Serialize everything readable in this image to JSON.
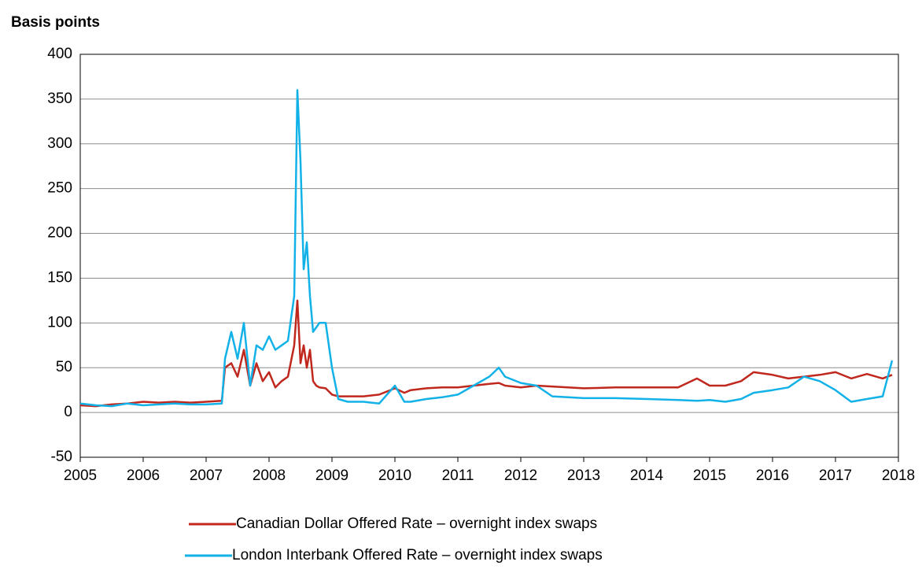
{
  "chart_data": {
    "type": "line",
    "y_label": "Basis points",
    "x": [
      2005.0,
      2005.25,
      2005.5,
      2005.75,
      2006.0,
      2006.25,
      2006.5,
      2006.75,
      2007.0,
      2007.25,
      2007.3,
      2007.4,
      2007.5,
      2007.6,
      2007.7,
      2007.8,
      2007.9,
      2008.0,
      2008.1,
      2008.2,
      2008.3,
      2008.4,
      2008.45,
      2008.5,
      2008.55,
      2008.6,
      2008.65,
      2008.7,
      2008.75,
      2008.8,
      2008.9,
      2009.0,
      2009.1,
      2009.25,
      2009.5,
      2009.75,
      2010.0,
      2010.15,
      2010.25,
      2010.5,
      2010.75,
      2011.0,
      2011.25,
      2011.5,
      2011.65,
      2011.75,
      2012.0,
      2012.25,
      2012.5,
      2013.0,
      2013.5,
      2014.0,
      2014.5,
      2014.8,
      2015.0,
      2015.25,
      2015.5,
      2015.7,
      2016.0,
      2016.25,
      2016.5,
      2016.75,
      2017.0,
      2017.25,
      2017.5,
      2017.75,
      2017.9
    ],
    "series": [
      {
        "name": "Canadian Dollar Offered Rate – overnight index swaps",
        "color": "#c0281e",
        "values": [
          8,
          7,
          9,
          10,
          12,
          11,
          12,
          11,
          12,
          13,
          50,
          55,
          40,
          70,
          30,
          55,
          35,
          45,
          28,
          35,
          40,
          75,
          125,
          55,
          75,
          50,
          70,
          35,
          30,
          28,
          27,
          20,
          18,
          18,
          18,
          20,
          27,
          22,
          25,
          27,
          28,
          28,
          30,
          32,
          33,
          30,
          28,
          30,
          29,
          27,
          28,
          28,
          28,
          38,
          30,
          30,
          35,
          45,
          42,
          38,
          40,
          42,
          45,
          38,
          43,
          38,
          42
        ]
      },
      {
        "name": "London Interbank Offered Rate – overnight index swaps",
        "color": "#12b2e8",
        "values": [
          10,
          8,
          7,
          10,
          8,
          9,
          10,
          9,
          9,
          10,
          60,
          90,
          60,
          100,
          30,
          75,
          70,
          85,
          70,
          75,
          80,
          130,
          360,
          280,
          160,
          190,
          130,
          90,
          95,
          100,
          100,
          50,
          15,
          12,
          12,
          10,
          30,
          12,
          12,
          15,
          17,
          20,
          30,
          40,
          50,
          40,
          33,
          30,
          18,
          16,
          16,
          15,
          14,
          13,
          14,
          12,
          15,
          22,
          25,
          28,
          40,
          35,
          25,
          12,
          15,
          18,
          58
        ]
      }
    ],
    "xlim": [
      2005,
      2018
    ],
    "xticks": [
      2005,
      2006,
      2007,
      2008,
      2009,
      2010,
      2011,
      2012,
      2013,
      2014,
      2015,
      2016,
      2017,
      2018
    ],
    "ylim": [
      -50,
      400
    ],
    "yticks": [
      -50,
      0,
      50,
      100,
      150,
      200,
      250,
      300,
      350,
      400
    ],
    "grid": true,
    "legend": "bottom"
  }
}
